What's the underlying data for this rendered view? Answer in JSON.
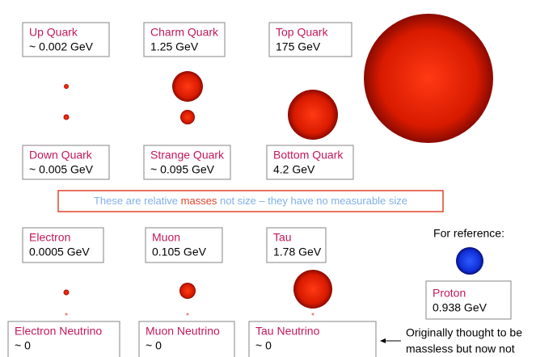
{
  "quarks": [
    {
      "name": "Up Quark",
      "mass": "~ 0.002 GeV"
    },
    {
      "name": "Charm Quark",
      "mass": "1.25 GeV"
    },
    {
      "name": "Top Quark",
      "mass": "175 GeV"
    },
    {
      "name": "Down Quark",
      "mass": "~ 0.005 GeV"
    },
    {
      "name": "Strange Quark",
      "mass": "~ 0.095 GeV"
    },
    {
      "name": "Bottom Quark",
      "mass": "4.2 GeV"
    }
  ],
  "note": {
    "before": "These are relative ",
    "highlight": "masses",
    "after": " not size – they have no measurable size"
  },
  "leptons": [
    {
      "name": "Electron",
      "mass": "0.0005 GeV"
    },
    {
      "name": "Muon",
      "mass": "0.105 GeV"
    },
    {
      "name": "Tau",
      "mass": "1.78 GeV"
    },
    {
      "name": "Electron Neutrino",
      "mass": "~ 0"
    },
    {
      "name": "Muon Neutrino",
      "mass": "~ 0"
    },
    {
      "name": "Tau Neutrino",
      "mass": "~ 0"
    }
  ],
  "reference": {
    "heading": "For reference:",
    "name": "Proton",
    "mass": "0.938 GeV"
  },
  "neutrino_note": [
    "Originally thought to be",
    "massless but now not"
  ]
}
